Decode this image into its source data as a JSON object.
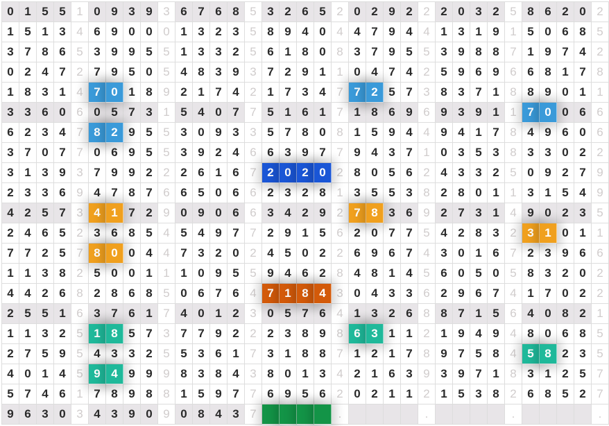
{
  "shaded_rows": [
    0,
    5,
    10,
    15,
    20
  ],
  "rows": [
    [
      "0",
      "1",
      "5",
      "5",
      "1",
      "0",
      "9",
      "3",
      "9",
      "3",
      "6",
      "7",
      "6",
      "8",
      "5",
      "3",
      "2",
      "6",
      "5",
      "2",
      "0",
      "2",
      "9",
      "2",
      "2",
      "2",
      "0",
      "3",
      "2",
      "5",
      "8",
      "6",
      "2",
      "0",
      "2"
    ],
    [
      "1",
      "5",
      "1",
      "3",
      "4",
      "6",
      "9",
      "0",
      "0",
      "0",
      "1",
      "3",
      "2",
      "3",
      "5",
      "8",
      "9",
      "4",
      "0",
      "4",
      "4",
      "7",
      "9",
      "4",
      "4",
      "1",
      "3",
      "1",
      "9",
      "1",
      "5",
      "0",
      "6",
      "8",
      "5"
    ],
    [
      "3",
      "7",
      "8",
      "6",
      "5",
      "3",
      "9",
      "9",
      "5",
      "5",
      "1",
      "3",
      "3",
      "2",
      "5",
      "6",
      "1",
      "8",
      "0",
      "8",
      "3",
      "7",
      "9",
      "5",
      "5",
      "3",
      "9",
      "8",
      "8",
      "7",
      "1",
      "9",
      "7",
      "4",
      "2"
    ],
    [
      "0",
      "2",
      "4",
      "7",
      "2",
      "7",
      "9",
      "5",
      "0",
      "5",
      "4",
      "8",
      "3",
      "9",
      "3",
      "7",
      "2",
      "9",
      "1",
      "1",
      "0",
      "4",
      "7",
      "4",
      "2",
      "5",
      "9",
      "6",
      "9",
      "6",
      "6",
      "8",
      "1",
      "7",
      "8"
    ],
    [
      "1",
      "8",
      "3",
      "1",
      "4",
      "7",
      "0",
      "1",
      "8",
      "9",
      "2",
      "1",
      "7",
      "4",
      "2",
      "1",
      "7",
      "3",
      "4",
      "7",
      "7",
      "2",
      "5",
      "7",
      "3",
      "8",
      "3",
      "7",
      "1",
      "8",
      "8",
      "9",
      "0",
      "1",
      "1"
    ],
    [
      "3",
      "3",
      "6",
      "0",
      "6",
      "0",
      "5",
      "7",
      "3",
      "1",
      "5",
      "4",
      "0",
      "7",
      "7",
      "5",
      "1",
      "6",
      "1",
      "7",
      "1",
      "8",
      "6",
      "9",
      "6",
      "9",
      "3",
      "9",
      "1",
      "1",
      "7",
      "0",
      "0",
      "6",
      "6"
    ],
    [
      "6",
      "2",
      "3",
      "4",
      "7",
      "8",
      "2",
      "9",
      "5",
      "5",
      "3",
      "0",
      "9",
      "3",
      "3",
      "5",
      "7",
      "8",
      "0",
      "8",
      "1",
      "5",
      "9",
      "4",
      "4",
      "9",
      "4",
      "1",
      "7",
      "8",
      "4",
      "9",
      "6",
      "0",
      "6"
    ],
    [
      "3",
      "7",
      "0",
      "7",
      "7",
      "0",
      "6",
      "9",
      "5",
      "5",
      "3",
      "9",
      "2",
      "4",
      "6",
      "6",
      "3",
      "9",
      "7",
      "7",
      "9",
      "4",
      "3",
      "7",
      "1",
      "0",
      "3",
      "5",
      "3",
      "8",
      "3",
      "3",
      "0",
      "2",
      "2"
    ],
    [
      "3",
      "1",
      "3",
      "9",
      "3",
      "7",
      "9",
      "9",
      "2",
      "2",
      "2",
      "6",
      "1",
      "6",
      "7",
      "2",
      "0",
      "2",
      "0",
      "2",
      "8",
      "0",
      "5",
      "6",
      "2",
      "4",
      "3",
      "3",
      "2",
      "5",
      "0",
      "9",
      "2",
      "7",
      "9"
    ],
    [
      "2",
      "3",
      "3",
      "6",
      "9",
      "4",
      "7",
      "8",
      "7",
      "6",
      "6",
      "5",
      "0",
      "6",
      "6",
      "2",
      "3",
      "2",
      "8",
      "1",
      "3",
      "5",
      "5",
      "3",
      "8",
      "2",
      "8",
      "0",
      "1",
      "1",
      "3",
      "1",
      "5",
      "4",
      "9"
    ],
    [
      "4",
      "2",
      "5",
      "7",
      "3",
      "4",
      "1",
      "7",
      "2",
      "9",
      "0",
      "9",
      "0",
      "6",
      "6",
      "3",
      "4",
      "2",
      "9",
      "2",
      "7",
      "8",
      "3",
      "6",
      "9",
      "2",
      "7",
      "3",
      "1",
      "4",
      "9",
      "0",
      "2",
      "3",
      "5"
    ],
    [
      "2",
      "4",
      "6",
      "5",
      "2",
      "3",
      "6",
      "8",
      "5",
      "4",
      "5",
      "4",
      "9",
      "7",
      "7",
      "2",
      "9",
      "1",
      "5",
      "6",
      "2",
      "0",
      "7",
      "7",
      "5",
      "4",
      "2",
      "8",
      "3",
      "2",
      "3",
      "1",
      "0",
      "1",
      "1"
    ],
    [
      "7",
      "7",
      "2",
      "5",
      "7",
      "8",
      "0",
      "0",
      "4",
      "4",
      "7",
      "3",
      "2",
      "0",
      "2",
      "4",
      "5",
      "0",
      "2",
      "2",
      "6",
      "9",
      "6",
      "7",
      "4",
      "3",
      "0",
      "1",
      "6",
      "7",
      "2",
      "3",
      "9",
      "6",
      "6"
    ],
    [
      "1",
      "1",
      "3",
      "8",
      "2",
      "5",
      "0",
      "0",
      "1",
      "1",
      "1",
      "0",
      "9",
      "5",
      "5",
      "9",
      "4",
      "6",
      "2",
      "8",
      "4",
      "8",
      "1",
      "4",
      "5",
      "6",
      "0",
      "5",
      "0",
      "5",
      "8",
      "3",
      "2",
      "0",
      "2"
    ],
    [
      "4",
      "4",
      "2",
      "6",
      "8",
      "2",
      "8",
      "6",
      "8",
      "5",
      "0",
      "6",
      "7",
      "6",
      "4",
      "7",
      "1",
      "8",
      "4",
      "3",
      "0",
      "4",
      "3",
      "3",
      "6",
      "2",
      "9",
      "6",
      "7",
      "4",
      "1",
      "7",
      "0",
      "2",
      "2"
    ],
    [
      "2",
      "5",
      "5",
      "1",
      "6",
      "3",
      "7",
      "6",
      "1",
      "7",
      "4",
      "0",
      "1",
      "2",
      "3",
      "0",
      "5",
      "7",
      "6",
      "4",
      "1",
      "3",
      "2",
      "6",
      "8",
      "8",
      "7",
      "1",
      "5",
      "6",
      "4",
      "0",
      "8",
      "2",
      "1"
    ],
    [
      "1",
      "1",
      "3",
      "2",
      "5",
      "1",
      "8",
      "5",
      "7",
      "3",
      "7",
      "7",
      "9",
      "2",
      "2",
      "2",
      "3",
      "8",
      "9",
      "8",
      "6",
      "3",
      "1",
      "1",
      "2",
      "1",
      "9",
      "4",
      "9",
      "4",
      "8",
      "0",
      "6",
      "8",
      "5"
    ],
    [
      "2",
      "7",
      "5",
      "9",
      "5",
      "4",
      "3",
      "3",
      "2",
      "5",
      "5",
      "3",
      "6",
      "1",
      "7",
      "3",
      "1",
      "8",
      "8",
      "7",
      "1",
      "2",
      "1",
      "7",
      "8",
      "9",
      "7",
      "5",
      "8",
      "4",
      "5",
      "8",
      "2",
      "3",
      "5"
    ],
    [
      "4",
      "0",
      "1",
      "4",
      "5",
      "9",
      "4",
      "9",
      "9",
      "9",
      "8",
      "3",
      "8",
      "4",
      "3",
      "8",
      "0",
      "1",
      "3",
      "4",
      "2",
      "1",
      "6",
      "3",
      "9",
      "3",
      "9",
      "7",
      "1",
      "8",
      "3",
      "1",
      "2",
      "5",
      "7"
    ],
    [
      "5",
      "7",
      "4",
      "6",
      "1",
      "7",
      "8",
      "9",
      "8",
      "8",
      "1",
      "5",
      "9",
      "7",
      "7",
      "6",
      "9",
      "5",
      "6",
      "2",
      "0",
      "2",
      "1",
      "1",
      "2",
      "1",
      "5",
      "3",
      "8",
      "2",
      "6",
      "8",
      "5",
      "2",
      "7"
    ],
    [
      "9",
      "6",
      "3",
      "0",
      "3",
      "4",
      "3",
      "9",
      "0",
      "9",
      "0",
      "8",
      "4",
      "3",
      "7",
      "",
      "",
      "",
      "",
      ".",
      "",
      "",
      "",
      "",
      ".",
      "",
      "",
      "",
      "",
      ".",
      "",
      "",
      "",
      "",
      "."
    ]
  ],
  "highlights": [
    {
      "row": 4,
      "cols": [
        5,
        6
      ],
      "color": "#3a9ad9"
    },
    {
      "row": 4,
      "cols": [
        20,
        21
      ],
      "color": "#3a9ad9"
    },
    {
      "row": 5,
      "cols": [
        30,
        31
      ],
      "color": "#3a9ad9"
    },
    {
      "row": 6,
      "cols": [
        5,
        6
      ],
      "color": "#3a9ad9"
    },
    {
      "row": 8,
      "cols": [
        15,
        16,
        17,
        18
      ],
      "color": "#1a56d6"
    },
    {
      "row": 10,
      "cols": [
        5,
        6
      ],
      "color": "#f0a01e"
    },
    {
      "row": 10,
      "cols": [
        20,
        21
      ],
      "color": "#f0a01e"
    },
    {
      "row": 11,
      "cols": [
        30,
        31
      ],
      "color": "#f0a01e"
    },
    {
      "row": 12,
      "cols": [
        5,
        6
      ],
      "color": "#f0a01e"
    },
    {
      "row": 14,
      "cols": [
        15,
        16,
        17,
        18
      ],
      "color": "#d35a0a"
    },
    {
      "row": 16,
      "cols": [
        5,
        6
      ],
      "color": "#1fb99a"
    },
    {
      "row": 16,
      "cols": [
        20,
        21
      ],
      "color": "#1fb99a"
    },
    {
      "row": 17,
      "cols": [
        30,
        31
      ],
      "color": "#1fb99a"
    },
    {
      "row": 18,
      "cols": [
        5,
        6
      ],
      "color": "#1fb99a"
    },
    {
      "row": 20,
      "cols": [
        15,
        16,
        17,
        18
      ],
      "color": "#139447"
    }
  ]
}
